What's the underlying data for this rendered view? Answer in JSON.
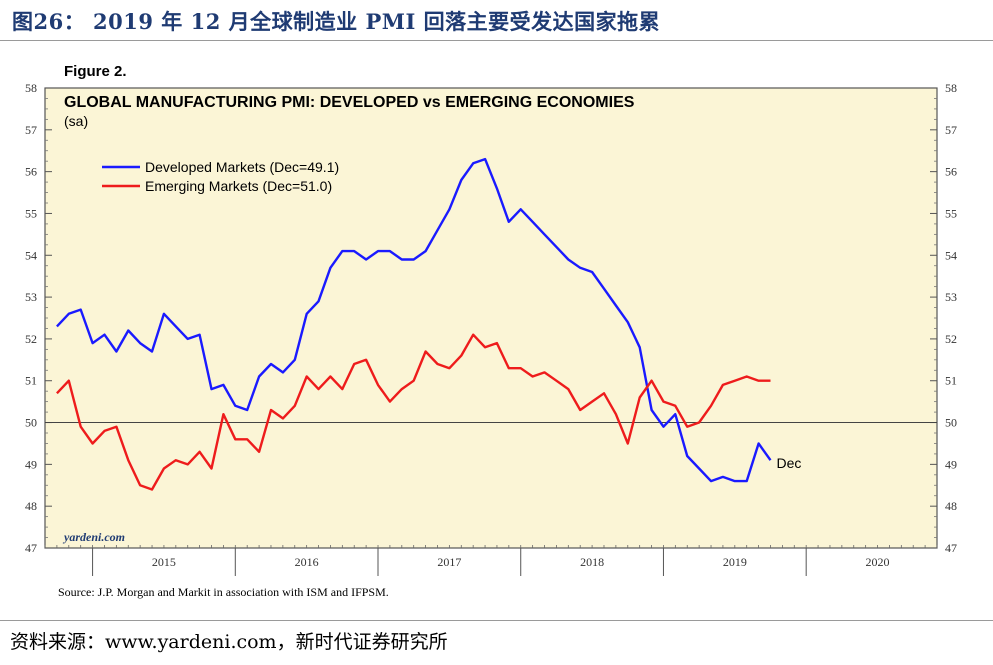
{
  "header": {
    "title": "图26： 2019 年 12 月全球制造业 PMI 回落主要受发达国家拖累"
  },
  "footer": {
    "source": "资料来源：www.yardeni.com，新时代证券研究所"
  },
  "colors": {
    "developed": "#1a1aff",
    "emerging": "#ee1c1c",
    "plot_bg": "#fbf5d6",
    "title_blue": "#1f3b73"
  },
  "chart_data": {
    "type": "line",
    "figure_label": "Figure 2.",
    "title": "GLOBAL MANUFACTURING PMI: DEVELOPED vs EMERGING ECONOMIES",
    "subtitle": "(sa)",
    "ylim": [
      47,
      58
    ],
    "yticks": [
      "47",
      "48",
      "49",
      "50",
      "51",
      "52",
      "53",
      "54",
      "55",
      "56",
      "57",
      "58"
    ],
    "xlim": [
      "2014-09",
      "2020-12"
    ],
    "year_labels": [
      "2015",
      "2016",
      "2017",
      "2018",
      "2019",
      "2020"
    ],
    "reference_line": 50,
    "grid": false,
    "legend_position": "top-left",
    "end_annotation": "Dec",
    "watermark": "yardeni.com",
    "source": "Source:  J.P. Morgan and Markit in association with ISM and IFPSM.",
    "series": [
      {
        "name": "Developed Markets (Dec=49.1)",
        "start": "2014-10",
        "values": [
          52.3,
          52.6,
          52.7,
          51.9,
          52.1,
          51.7,
          52.2,
          51.9,
          51.7,
          52.6,
          52.3,
          52.0,
          52.1,
          50.8,
          50.9,
          50.4,
          50.3,
          51.1,
          51.4,
          51.2,
          51.5,
          52.6,
          52.9,
          53.7,
          54.1,
          54.1,
          53.9,
          54.1,
          54.1,
          53.9,
          53.9,
          54.1,
          54.6,
          55.1,
          55.8,
          56.2,
          56.3,
          55.6,
          54.8,
          55.1,
          54.8,
          54.5,
          54.2,
          53.9,
          53.7,
          53.6,
          53.2,
          52.8,
          52.4,
          51.8,
          50.3,
          49.9,
          50.2,
          49.2,
          48.9,
          48.6,
          48.7,
          48.6,
          48.6,
          49.5,
          49.1
        ]
      },
      {
        "name": "Emerging Markets (Dec=51.0)",
        "start": "2014-10",
        "values": [
          50.7,
          51.0,
          49.9,
          49.5,
          49.8,
          49.9,
          49.1,
          48.5,
          48.4,
          48.9,
          49.1,
          49.0,
          49.3,
          48.9,
          50.2,
          49.6,
          49.6,
          49.3,
          50.3,
          50.1,
          50.4,
          51.1,
          50.8,
          51.1,
          50.8,
          51.4,
          51.5,
          50.9,
          50.5,
          50.8,
          51.0,
          51.7,
          51.4,
          51.3,
          51.6,
          52.1,
          51.8,
          51.9,
          51.3,
          51.3,
          51.1,
          51.2,
          51.0,
          50.8,
          50.3,
          50.5,
          50.7,
          50.2,
          49.5,
          50.6,
          51.0,
          50.5,
          50.4,
          49.9,
          50.0,
          50.4,
          50.9,
          51.0,
          51.1,
          51.0,
          51.0
        ]
      }
    ]
  }
}
